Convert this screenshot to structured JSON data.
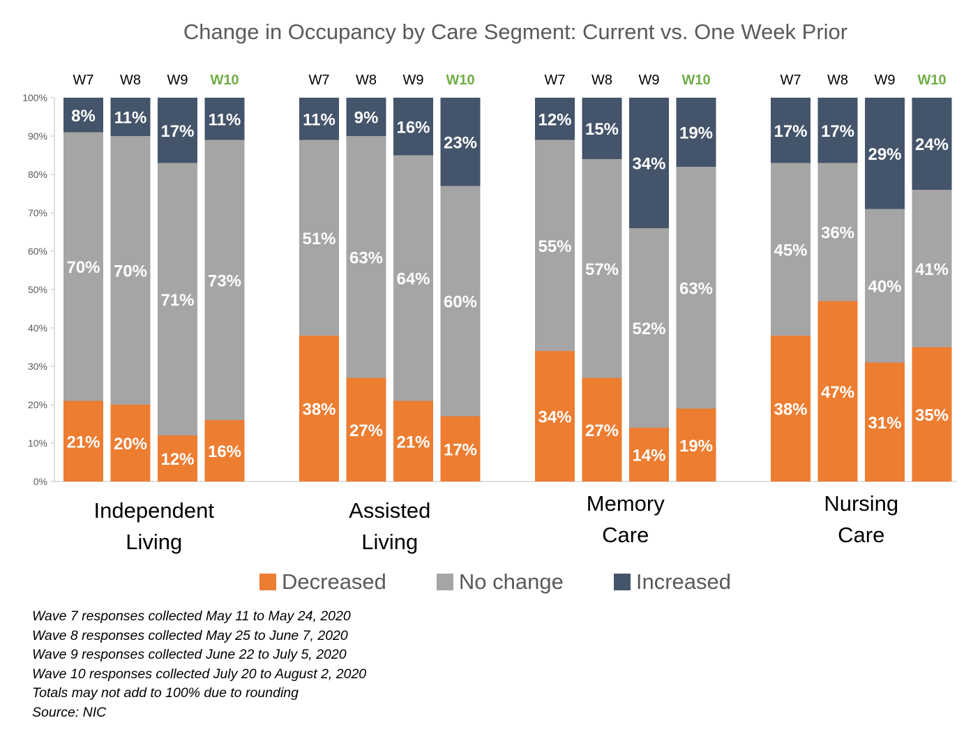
{
  "chart_data": {
    "type": "stacked-bar",
    "title": "Change in Occupancy by Care Segment: Current vs. One Week Prior",
    "ylim": [
      0,
      100
    ],
    "y_ticks": [
      "0%",
      "10%",
      "20%",
      "30%",
      "40%",
      "50%",
      "60%",
      "70%",
      "80%",
      "90%",
      "100%"
    ],
    "highlight_wave": "W10",
    "highlight_color": "#70AD47",
    "groups": [
      {
        "name": "Independent Living",
        "label_lines": [
          "Independent",
          "Living"
        ],
        "waves": [
          {
            "wave": "W7",
            "decreased": 21,
            "no_change": 70,
            "increased": 8
          },
          {
            "wave": "W8",
            "decreased": 20,
            "no_change": 70,
            "increased": 11
          },
          {
            "wave": "W9",
            "decreased": 12,
            "no_change": 71,
            "increased": 17
          },
          {
            "wave": "W10",
            "decreased": 16,
            "no_change": 73,
            "increased": 11
          }
        ]
      },
      {
        "name": "Assisted Living",
        "label_lines": [
          "Assisted",
          "Living"
        ],
        "waves": [
          {
            "wave": "W7",
            "decreased": 38,
            "no_change": 51,
            "increased": 11
          },
          {
            "wave": "W8",
            "decreased": 27,
            "no_change": 63,
            "increased": 9
          },
          {
            "wave": "W9",
            "decreased": 21,
            "no_change": 64,
            "increased": 16
          },
          {
            "wave": "W10",
            "decreased": 17,
            "no_change": 60,
            "increased": 23
          }
        ]
      },
      {
        "name": "Memory Care",
        "label_lines": [
          "Memory",
          "Care"
        ],
        "waves": [
          {
            "wave": "W7",
            "decreased": 34,
            "no_change": 55,
            "increased": 12
          },
          {
            "wave": "W8",
            "decreased": 27,
            "no_change": 57,
            "increased": 15
          },
          {
            "wave": "W9",
            "decreased": 14,
            "no_change": 52,
            "increased": 34
          },
          {
            "wave": "W10",
            "decreased": 19,
            "no_change": 63,
            "increased": 19
          }
        ]
      },
      {
        "name": "Nursing Care",
        "label_lines": [
          "Nursing",
          "Care"
        ],
        "waves": [
          {
            "wave": "W7",
            "decreased": 38,
            "no_change": 45,
            "increased": 17
          },
          {
            "wave": "W8",
            "decreased": 47,
            "no_change": 36,
            "increased": 17
          },
          {
            "wave": "W9",
            "decreased": 31,
            "no_change": 40,
            "increased": 29
          },
          {
            "wave": "W10",
            "decreased": 35,
            "no_change": 41,
            "increased": 24
          }
        ]
      }
    ],
    "series": [
      {
        "key": "decreased",
        "name": "Decreased",
        "color": "#ED7D31"
      },
      {
        "key": "no_change",
        "name": "No change",
        "color": "#A5A5A5"
      },
      {
        "key": "increased",
        "name": "Increased",
        "color": "#44546A"
      }
    ],
    "legend_position": "bottom"
  },
  "notes": [
    "Wave 7 responses collected May 11 to May 24, 2020",
    "Wave 8 responses collected May 25 to June 7, 2020",
    "Wave 9 responses collected June 22 to July 5, 2020",
    "Wave 10 responses collected July 20 to August 2, 2020",
    "Totals may not add to 100% due to rounding",
    "Source: NIC"
  ]
}
